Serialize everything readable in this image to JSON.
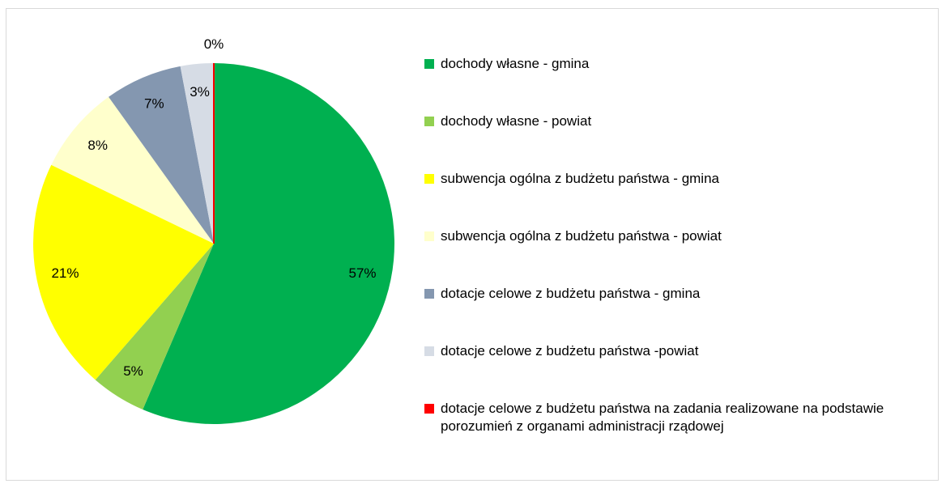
{
  "chart_data": {
    "type": "pie",
    "categories": [
      "dochody własne - gmina",
      "dochody własne - powiat",
      "subwencja ogólna z budżetu państwa - gmina",
      "subwencja ogólna z budżetu państwa - powiat",
      "dotacje celowe z budżetu państwa - gmina",
      "dotacje celowe z budżetu państwa -powiat",
      "dotacje celowe z budżetu państwa na zadania realizowane na podstawie porozumień z organami administracji rządowej"
    ],
    "values": [
      57,
      5,
      21,
      8,
      7,
      3,
      0
    ],
    "value_labels": [
      "57%",
      "5%",
      "21%",
      "8%",
      "7%",
      "3%",
      "0%"
    ],
    "colors": [
      "#00b050",
      "#92d050",
      "#ffff00",
      "#ffffcc",
      "#8497b0",
      "#d6dce5",
      "#ff0000"
    ],
    "legend": "right"
  }
}
